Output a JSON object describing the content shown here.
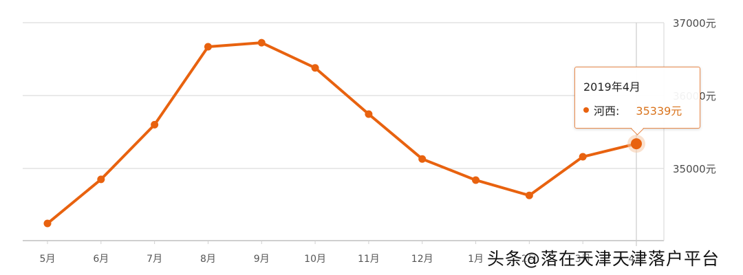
{
  "chart_data": {
    "type": "line",
    "title": "",
    "xlabel": "",
    "ylabel": "",
    "categories": [
      "5月",
      "6月",
      "7月",
      "8月",
      "9月",
      "10月",
      "11月",
      "12月",
      "1月",
      "2月",
      "3月",
      "4月"
    ],
    "series": [
      {
        "name": "河西",
        "color": "#e8620f",
        "values": [
          34245,
          34850,
          35600,
          36670,
          36725,
          36380,
          35745,
          35130,
          34840,
          34630,
          35160,
          35339
        ]
      }
    ],
    "y_ticks": [
      "35000元",
      "36000元",
      "37000元"
    ],
    "ylim": [
      34000,
      37000
    ],
    "grid": true,
    "legend": "none",
    "y_axis_position": "right",
    "tooltip": {
      "title": "2019年4月",
      "series": "河西:",
      "value": "35339元",
      "index": 11
    }
  },
  "axis": {
    "y_labels": [
      {
        "text": "37000元",
        "value": 37000
      },
      {
        "text": "36000元",
        "value": 36000
      },
      {
        "text": "35000元",
        "value": 35000
      }
    ],
    "x_labels": [
      "5月",
      "6月",
      "7月",
      "8月",
      "9月",
      "10月",
      "11月",
      "12月",
      "1月",
      "2月",
      "3月",
      "4月"
    ]
  },
  "tooltip": {
    "title": "2019年4月",
    "series_label": "河西:",
    "value": "35339元"
  },
  "watermark": "头条@落在天津天津落户平台",
  "colors": {
    "line": "#e8620f",
    "grid": "#dddddd",
    "axis_text": "#555555"
  }
}
